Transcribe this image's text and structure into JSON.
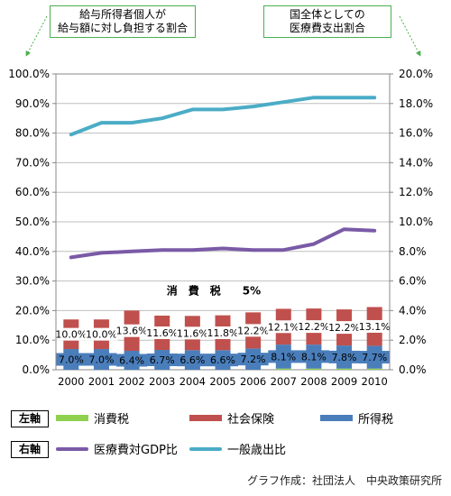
{
  "notes": {
    "left": "給与所得者個人が\n給与額に対し負担する割合",
    "right": "国全体としての\n医療費支出割合"
  },
  "chart_data": {
    "type": "bar",
    "categories": [
      "2000",
      "2001",
      "2002",
      "2003",
      "2004",
      "2005",
      "2006",
      "2007",
      "2008",
      "2009",
      "2010"
    ],
    "left_axis": {
      "ylim": [
        0,
        100
      ],
      "ticks": [
        "0.0%",
        "10.0%",
        "20.0%",
        "30.0%",
        "40.0%",
        "50.0%",
        "60.0%",
        "70.0%",
        "80.0%",
        "90.0%",
        "100.0%"
      ]
    },
    "right_axis": {
      "ylim": [
        0,
        20
      ],
      "ticks": [
        "0.0%",
        "2.0%",
        "4.0%",
        "6.0%",
        "8.0%",
        "10.0%",
        "12.0%",
        "14.0%",
        "16.0%",
        "18.0%",
        "20.0%"
      ]
    },
    "bar_series": [
      {
        "name": "消費税",
        "axis": "left",
        "color": "#8fd14f",
        "values": [
          0,
          0,
          0,
          0,
          0,
          0,
          0,
          0.4,
          0.4,
          0.4,
          0.4
        ]
      },
      {
        "name": "所得税",
        "axis": "left",
        "color": "#4a7ebb",
        "values": [
          7.0,
          7.0,
          6.4,
          6.7,
          6.6,
          6.6,
          7.2,
          8.1,
          8.1,
          7.8,
          7.7
        ],
        "labels": [
          "7.0%",
          "7.0%",
          "6.4%",
          "6.7%",
          "6.6%",
          "6.6%",
          "7.2%",
          "8.1%",
          "8.1%",
          "7.8%",
          "7.7%"
        ]
      },
      {
        "name": "社会保険",
        "axis": "left",
        "color": "#c0504d",
        "values": [
          10.0,
          10.0,
          13.6,
          11.6,
          11.6,
          11.8,
          12.2,
          12.1,
          12.2,
          12.2,
          13.1
        ],
        "labels": [
          "10.0%",
          "10.0%",
          "13.6%",
          "11.6%",
          "11.6%",
          "11.8%",
          "12.2%",
          "12.1%",
          "12.2%",
          "12.2%",
          "13.1%"
        ]
      }
    ],
    "line_series": [
      {
        "name": "医療費対GDP比",
        "axis": "right",
        "color": "#7a5aa6",
        "values": [
          7.6,
          7.9,
          8.0,
          8.1,
          8.1,
          8.2,
          8.1,
          8.1,
          8.5,
          9.5,
          9.4
        ]
      },
      {
        "name": "一般歳出比",
        "axis": "right",
        "color": "#4bacc6",
        "values": [
          15.9,
          16.7,
          16.7,
          17.0,
          17.6,
          17.6,
          17.8,
          18.1,
          18.4,
          18.4,
          18.4
        ]
      }
    ],
    "annotation": "消　費　税　　5%",
    "legend": {
      "left_label": "左軸",
      "right_label": "右軸"
    },
    "grid": "horizontal"
  },
  "credit": "グラフ作成：社団法人　中央政策研究所"
}
